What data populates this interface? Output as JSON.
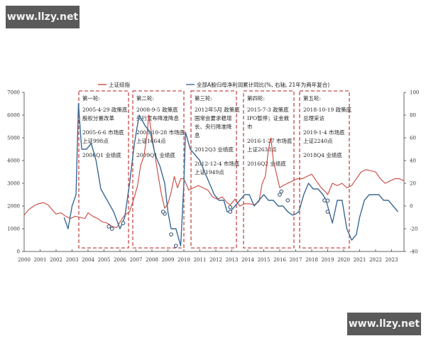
{
  "watermarks": {
    "top": "www.llzy.net",
    "bottom": "www.llzy.net"
  },
  "colors": {
    "index_line": "#c9463f",
    "profit_line": "#3b6a93",
    "box_border": "#c44a4a",
    "axis": "#666666"
  },
  "legend": {
    "items": [
      {
        "label": "上证综指",
        "color": "#c9463f"
      },
      {
        "label": "全部A股归母净利润累计同比(%, 右轴, 21年为两年复合)",
        "color": "#3b6a93"
      }
    ]
  },
  "axes": {
    "left_ticks": [
      "7000",
      "6000",
      "5000",
      "4000",
      "3000",
      "2000",
      "1000",
      "0"
    ],
    "right_ticks": [
      "100",
      "80",
      "60",
      "40",
      "20",
      "0",
      "-20",
      "-40"
    ],
    "x_ticks": [
      "2000",
      "2001",
      "2002",
      "2003",
      "2004",
      "2005",
      "2006",
      "2007",
      "2008",
      "2009",
      "2010",
      "2011",
      "2012",
      "2013",
      "2014",
      "2015",
      "2016",
      "2017",
      "2018",
      "2019",
      "2020",
      "2021",
      "2022",
      "2023"
    ]
  },
  "boxes": [
    {
      "title": "第一轮:",
      "lines": [
        "2005-4-29 政策底",
        "股权分置改革",
        "",
        "2005-6-6  市场底",
        "上证998点",
        "",
        "2006Q1  业绩底"
      ]
    },
    {
      "title": "第二轮:",
      "lines": [
        "2008-9-5 政策底",
        "央行宣布降准降息",
        "",
        "2008-10-28  市场底",
        "上证1664点",
        "",
        "2009Q1  业绩底"
      ]
    },
    {
      "title": "第三轮:",
      "lines": [
        "2012年5月 政策底",
        "国常会要求稳增",
        "长、央行降准降",
        "息",
        "",
        "2012Q3  业绩底",
        "",
        "2012-12-4  市场底",
        "上证1949点"
      ]
    },
    {
      "title": "第四轮:",
      "lines": [
        "2015-7-3 政策底",
        "IPO暂停；证金救",
        "市",
        "",
        "2016-1-27  市场底",
        "上证2638点",
        "",
        "2016Q2  业绩底"
      ]
    },
    {
      "title": "第五轮:",
      "lines": [
        "2018-10-19 政策底",
        "总理采访",
        "",
        "2019-1-4  市场底",
        "上证2240点",
        "",
        "2018Q4  业绩底"
      ]
    }
  ],
  "chart_data": {
    "type": "line",
    "title": "",
    "xlabel": "",
    "ylabel_left": "上证综指",
    "ylabel_right": "全部A股归母净利润累计同比(%)",
    "xlim": [
      2000,
      2023.8
    ],
    "ylim_left": [
      0,
      7000
    ],
    "ylim_right": [
      -40,
      100
    ],
    "grid": false,
    "legend_position": "top",
    "series": [
      {
        "name": "上证综指",
        "axis": "left",
        "x": [
          2000.0,
          2000.3,
          2000.6,
          2000.9,
          2001.2,
          2001.5,
          2001.8,
          2002.0,
          2002.3,
          2002.6,
          2002.9,
          2003.2,
          2003.5,
          2003.8,
          2004.0,
          2004.3,
          2004.6,
          2004.9,
          2005.2,
          2005.5,
          2005.8,
          2006.0,
          2006.3,
          2006.6,
          2006.9,
          2007.1,
          2007.3,
          2007.5,
          2007.7,
          2007.8,
          2008.0,
          2008.2,
          2008.4,
          2008.6,
          2008.8,
          2009.0,
          2009.2,
          2009.4,
          2009.6,
          2009.8,
          2010.0,
          2010.3,
          2010.6,
          2010.9,
          2011.2,
          2011.5,
          2011.8,
          2012.1,
          2012.4,
          2012.7,
          2012.9,
          2013.2,
          2013.5,
          2013.8,
          2014.1,
          2014.4,
          2014.7,
          2014.9,
          2015.1,
          2015.3,
          2015.45,
          2015.6,
          2015.8,
          2016.0,
          2016.2,
          2016.5,
          2016.8,
          2017.1,
          2017.4,
          2017.7,
          2018.0,
          2018.3,
          2018.6,
          2018.9,
          2019.0,
          2019.3,
          2019.6,
          2019.9,
          2020.2,
          2020.5,
          2020.8,
          2021.1,
          2021.4,
          2021.7,
          2022.0,
          2022.3,
          2022.6,
          2022.9,
          2023.2,
          2023.5,
          2023.8
        ],
        "values": [
          1600,
          1850,
          2000,
          2100,
          2150,
          2050,
          1800,
          1650,
          1700,
          1550,
          1450,
          1550,
          1500,
          1450,
          1700,
          1550,
          1450,
          1300,
          1250,
          1100,
          1050,
          1300,
          1600,
          1750,
          2400,
          2900,
          3800,
          4200,
          5200,
          6000,
          5100,
          4200,
          3300,
          2500,
          1900,
          2100,
          2600,
          3300,
          2800,
          3200,
          3200,
          2700,
          2800,
          2900,
          2800,
          2700,
          2400,
          2300,
          2400,
          2150,
          2050,
          2300,
          2000,
          2100,
          2100,
          2050,
          2200,
          3000,
          3300,
          4500,
          5000,
          4000,
          3400,
          2800,
          2900,
          3000,
          3100,
          3200,
          3200,
          3300,
          3400,
          3100,
          2800,
          2600,
          2500,
          3000,
          2900,
          3000,
          2800,
          2900,
          3200,
          3500,
          3600,
          3550,
          3500,
          3200,
          3000,
          3100,
          3200,
          3200,
          3100
        ]
      },
      {
        "name": "全部A股归母净利润累计同比(%, 右轴, 21年为两年复合)",
        "axis": "right",
        "x": [
          2002.5,
          2002.75,
          2003.0,
          2003.25,
          2003.4,
          2003.6,
          2003.9,
          2004.2,
          2004.5,
          2004.8,
          2005.2,
          2005.6,
          2006.0,
          2006.3,
          2006.6,
          2006.9,
          2007.2,
          2007.4,
          2007.6,
          2007.9,
          2008.2,
          2008.5,
          2008.8,
          2009.0,
          2009.2,
          2009.5,
          2009.8,
          2010.0,
          2010.1,
          2010.4,
          2010.7,
          2011.0,
          2011.3,
          2011.6,
          2011.9,
          2012.2,
          2012.5,
          2012.7,
          2012.9,
          2013.2,
          2013.5,
          2013.8,
          2014.1,
          2014.4,
          2014.7,
          2015.0,
          2015.3,
          2015.6,
          2015.9,
          2016.2,
          2016.5,
          2016.8,
          2017.0,
          2017.2,
          2017.5,
          2017.8,
          2018.1,
          2018.4,
          2018.7,
          2018.9,
          2019.1,
          2019.3,
          2019.6,
          2019.9,
          2020.2,
          2020.5,
          2020.8,
          2021.0,
          2021.3,
          2021.6,
          2021.9,
          2022.2,
          2022.5,
          2022.8,
          2023.1,
          2023.4
        ],
        "values": [
          -10,
          -20,
          0,
          10,
          90,
          50,
          50,
          55,
          40,
          15,
          5,
          -5,
          -20,
          -10,
          20,
          55,
          80,
          75,
          70,
          65,
          45,
          35,
          20,
          -5,
          -20,
          -20,
          -35,
          20,
          65,
          50,
          45,
          40,
          30,
          20,
          10,
          5,
          5,
          -5,
          -5,
          0,
          5,
          10,
          10,
          0,
          5,
          10,
          5,
          5,
          0,
          0,
          -5,
          -8,
          -7,
          -5,
          10,
          20,
          15,
          15,
          10,
          5,
          -5,
          -15,
          5,
          5,
          -20,
          -30,
          -25,
          -10,
          5,
          10,
          10,
          10,
          5,
          5,
          0,
          -5
        ]
      }
    ],
    "markers": {
      "index_circles": [
        [
          2005.3,
          1100
        ],
        [
          2005.5,
          1000
        ],
        [
          2008.8,
          1664
        ],
        [
          2012.9,
          1949
        ],
        [
          2016.1,
          2638
        ],
        [
          2019.0,
          2240
        ]
      ],
      "profit_circles": [
        [
          2006.2,
          -15
        ],
        [
          2008.7,
          -5
        ],
        [
          2009.2,
          -25
        ],
        [
          2009.5,
          -35
        ],
        [
          2012.9,
          -5
        ],
        [
          2016.0,
          10
        ],
        [
          2016.5,
          5
        ],
        [
          2018.8,
          5
        ],
        [
          2019.0,
          -5
        ]
      ]
    }
  }
}
